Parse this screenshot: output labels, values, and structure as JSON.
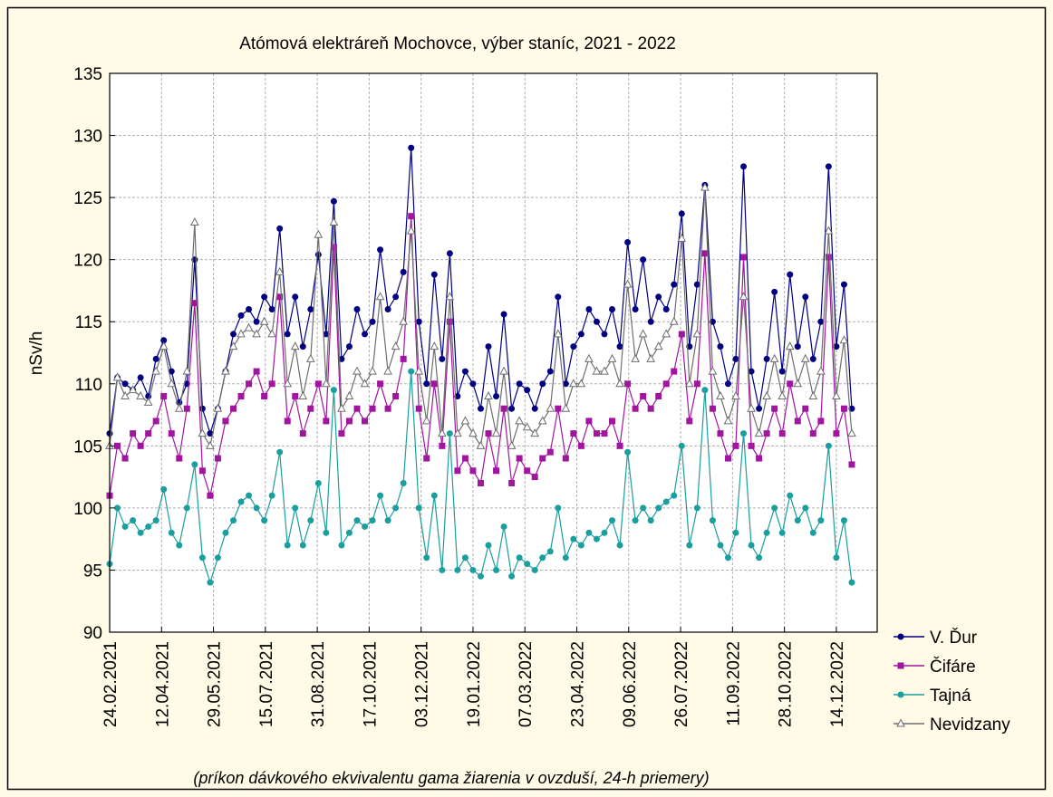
{
  "chart_data": {
    "type": "line",
    "title": "Atómová elektráreň Mochovce, výber staníc, 2021 - 2022",
    "y_label": "nSv/h",
    "subtitle": "(príkon dávkového ekvivalentu gama žiarenia v ovzduší, 24-h priemery)",
    "x": [
      "24.02.2021",
      "03.03.2021",
      "10.03.2021",
      "17.03.2021",
      "24.03.2021",
      "31.03.2021",
      "07.04.2021",
      "14.04.2021",
      "21.04.2021",
      "28.04.2021",
      "05.05.2021",
      "12.05.2021",
      "19.05.2021",
      "26.05.2021",
      "02.06.2021",
      "09.06.2021",
      "16.06.2021",
      "23.06.2021",
      "30.06.2021",
      "07.07.2021",
      "14.07.2021",
      "21.07.2021",
      "28.07.2021",
      "04.08.2021",
      "11.08.2021",
      "18.08.2021",
      "25.08.2021",
      "01.09.2021",
      "08.09.2021",
      "15.09.2021",
      "22.09.2021",
      "29.09.2021",
      "06.10.2021",
      "13.10.2021",
      "20.10.2021",
      "27.10.2021",
      "03.11.2021",
      "10.11.2021",
      "17.11.2021",
      "24.11.2021",
      "01.12.2021",
      "08.12.2021",
      "15.12.2021",
      "22.12.2021",
      "29.12.2021",
      "05.01.2022",
      "12.01.2022",
      "19.01.2022",
      "26.01.2022",
      "02.02.2022",
      "09.02.2022",
      "16.02.2022",
      "23.02.2022",
      "02.03.2022",
      "09.03.2022",
      "16.03.2022",
      "23.03.2022",
      "30.03.2022",
      "06.04.2022",
      "13.04.2022",
      "20.04.2022",
      "27.04.2022",
      "04.05.2022",
      "11.05.2022",
      "18.05.2022",
      "25.05.2022",
      "01.06.2022",
      "08.06.2022",
      "15.06.2022",
      "22.06.2022",
      "29.06.2022",
      "06.07.2022",
      "13.07.2022",
      "20.07.2022",
      "27.07.2022",
      "03.08.2022",
      "10.08.2022",
      "17.08.2022",
      "24.08.2022",
      "31.08.2022",
      "07.09.2022",
      "14.09.2022",
      "21.09.2022",
      "28.09.2022",
      "05.10.2022",
      "12.10.2022",
      "19.10.2022",
      "26.10.2022",
      "02.11.2022",
      "09.11.2022",
      "16.11.2022",
      "23.11.2022",
      "30.11.2022",
      "07.12.2022",
      "14.12.2022",
      "21.12.2022",
      "28.12.2022"
    ],
    "series": [
      {
        "name": "V. Ďur",
        "color": "#000080",
        "marker": "circle",
        "values": [
          106,
          110.5,
          110,
          109.5,
          110.5,
          109,
          112,
          113.5,
          111,
          108.5,
          110,
          120,
          108,
          106,
          108,
          111,
          114,
          115.5,
          116,
          115,
          117,
          116,
          122.5,
          114,
          117,
          113,
          116,
          120.4,
          114,
          124.7,
          112,
          113,
          116,
          114,
          115,
          120.8,
          116,
          117,
          119,
          129,
          115,
          110,
          118.8,
          112,
          120.5,
          109,
          111,
          110,
          108,
          113,
          109,
          115.6,
          108,
          110,
          109.5,
          108,
          110,
          111,
          117,
          110,
          113,
          114,
          116,
          115,
          114,
          116,
          113,
          121.4,
          116,
          120,
          115,
          117,
          116,
          118,
          123.7,
          113,
          118,
          126,
          115,
          113,
          110,
          112,
          127.5,
          111,
          108,
          112,
          117.4,
          111,
          118.8,
          113,
          117,
          112,
          115,
          127.5,
          113,
          118,
          108
        ]
      },
      {
        "name": "Čifáre",
        "color": "#a0169e",
        "marker": "square",
        "values": [
          101,
          105,
          104,
          106,
          105,
          106,
          107,
          109,
          106,
          104,
          108,
          116.5,
          103,
          101,
          104,
          107,
          108,
          109,
          110,
          111,
          109,
          110,
          117,
          107,
          109,
          106,
          108,
          110,
          107,
          121,
          106,
          107,
          108,
          107,
          108,
          110,
          108,
          109,
          112,
          123.5,
          108,
          104,
          110,
          105,
          115,
          103,
          104,
          103,
          102,
          106,
          103,
          108,
          102,
          104,
          103,
          102.5,
          104,
          104.5,
          108,
          104,
          106,
          105,
          107,
          106,
          106,
          107,
          105,
          110,
          108,
          109,
          108,
          109,
          110,
          111,
          114,
          107,
          110,
          120.5,
          108,
          106,
          104,
          105,
          120.2,
          105,
          104,
          106,
          108,
          106,
          110,
          107,
          108,
          106,
          107,
          120.2,
          106,
          108,
          103.5
        ]
      },
      {
        "name": "Tajná",
        "color": "#1a9e9e",
        "marker": "circle",
        "values": [
          95.5,
          100,
          98.5,
          99,
          98,
          98.5,
          99,
          101.5,
          98,
          97,
          100,
          103.5,
          96,
          94,
          96,
          98,
          99,
          100.5,
          101,
          100,
          99,
          101,
          104.5,
          97,
          100,
          97,
          99,
          102,
          98,
          109.5,
          97,
          98,
          99,
          98.5,
          99,
          101,
          99,
          100,
          102,
          111,
          100,
          96,
          101,
          95,
          106,
          95,
          96,
          95,
          94.5,
          97,
          95,
          98.5,
          94.5,
          96,
          95.5,
          95,
          96,
          96.5,
          100,
          96,
          97.5,
          97,
          98,
          97.5,
          98,
          99,
          97,
          104.5,
          99,
          100,
          99,
          100,
          100.5,
          101,
          105,
          97,
          100,
          109.5,
          99,
          97,
          96,
          98,
          106,
          97,
          96,
          98,
          100,
          98,
          101,
          99,
          100,
          98,
          99,
          105,
          96,
          99,
          94
        ]
      },
      {
        "name": "Nevidzany",
        "color": "#6e6e6e",
        "marker": "triangle",
        "values": [
          105,
          110.5,
          109,
          109.5,
          109,
          108.5,
          111,
          113,
          110,
          108,
          111,
          123,
          106,
          105,
          108,
          111,
          113,
          114,
          114.5,
          114,
          115,
          114,
          119,
          110,
          113,
          109,
          112,
          122,
          110,
          123,
          108,
          109,
          111,
          110,
          111,
          117,
          111,
          113,
          115,
          122.3,
          111,
          107,
          113,
          106,
          117,
          106,
          107,
          106,
          105,
          109,
          106,
          111,
          105,
          107,
          106.5,
          106,
          107,
          108,
          114,
          108,
          110,
          110,
          112,
          111,
          111,
          112,
          110,
          118,
          112,
          114,
          112,
          113,
          114,
          115,
          121.7,
          110,
          114,
          125.8,
          111,
          109,
          107,
          109,
          117,
          108,
          106,
          109,
          112,
          109,
          113,
          110,
          112,
          109,
          111,
          122.3,
          109,
          113.5,
          106
        ]
      }
    ],
    "xlim": [
      "24.02.2021",
      "20.01.2023"
    ],
    "xticks": [
      "24.02.2021",
      "12.04.2021",
      "29.05.2021",
      "15.07.2021",
      "31.08.2021",
      "17.10.2021",
      "03.12.2021",
      "19.01.2022",
      "07.03.2022",
      "23.04.2022",
      "09.06.2022",
      "26.07.2022",
      "11.09.2022",
      "28.10.2022",
      "14.12.2022"
    ],
    "ylim": [
      90,
      135
    ],
    "yticks": [
      90,
      95,
      100,
      105,
      110,
      115,
      120,
      125,
      130,
      135
    ],
    "grid": true,
    "legend": "right-bottom"
  }
}
